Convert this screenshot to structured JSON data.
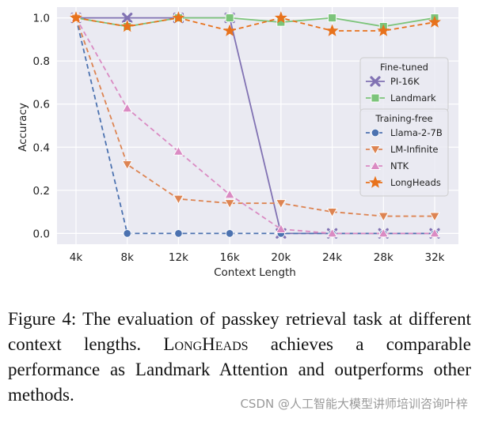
{
  "chart_data": {
    "type": "line",
    "xlabel": "Context Length",
    "ylabel": "Accuracy",
    "categories": [
      "4k",
      "8k",
      "12k",
      "16k",
      "20k",
      "24k",
      "28k",
      "32k"
    ],
    "ylim": [
      -0.05,
      1.05
    ],
    "yticks": [
      "0.0",
      "0.2",
      "0.4",
      "0.6",
      "0.8",
      "1.0"
    ],
    "ytick_values": [
      0,
      0.2,
      0.4,
      0.6,
      0.8,
      1.0
    ],
    "grid": true,
    "legend_position": "right",
    "legend_groups": [
      {
        "title": "Fine-tuned",
        "entries": [
          "PI-16K",
          "Landmark"
        ]
      },
      {
        "title": "Training-free",
        "entries": [
          "Llama-2-7B",
          "LM-Infinite",
          "NTK",
          "LongHeads"
        ]
      }
    ],
    "series": [
      {
        "name": "PI-16K",
        "color": "#8172b3",
        "dash": "solid",
        "marker": "x",
        "values": [
          1.0,
          1.0,
          1.0,
          1.0,
          0.0,
          0.0,
          0.0,
          0.0
        ]
      },
      {
        "name": "Landmark",
        "color": "#7cc47a",
        "dash": "solid",
        "marker": "square",
        "values": [
          1.0,
          0.96,
          1.0,
          1.0,
          0.98,
          1.0,
          0.96,
          1.0
        ]
      },
      {
        "name": "Llama-2-7B",
        "color": "#4c72b0",
        "dash": "dashed",
        "marker": "circle",
        "values": [
          1.0,
          0.0,
          0.0,
          0.0,
          0.0,
          0.0,
          0.0,
          0.0
        ]
      },
      {
        "name": "LM-Infinite",
        "color": "#dd8452",
        "dash": "dashed",
        "marker": "triangle-down",
        "values": [
          1.0,
          0.32,
          0.16,
          0.14,
          0.14,
          0.1,
          0.08,
          0.08
        ]
      },
      {
        "name": "NTK",
        "color": "#da8bc3",
        "dash": "dashed",
        "marker": "triangle-up",
        "values": [
          1.0,
          0.58,
          0.38,
          0.18,
          0.02,
          0.0,
          0.0,
          0.0
        ]
      },
      {
        "name": "LongHeads",
        "color": "#e8721c",
        "dash": "dashed",
        "marker": "star",
        "values": [
          1.0,
          0.96,
          1.0,
          0.94,
          1.0,
          0.94,
          0.94,
          0.98
        ]
      }
    ]
  },
  "caption": {
    "part1": "Figure 4: The evaluation of passkey retrieval task at different context lengths. ",
    "method": "LongHeads",
    "part2": " achieves a comparable performance as Landmark Attention and outperforms other methods."
  },
  "watermark": "CSDN @人工智能大模型讲师培训咨询叶梓"
}
